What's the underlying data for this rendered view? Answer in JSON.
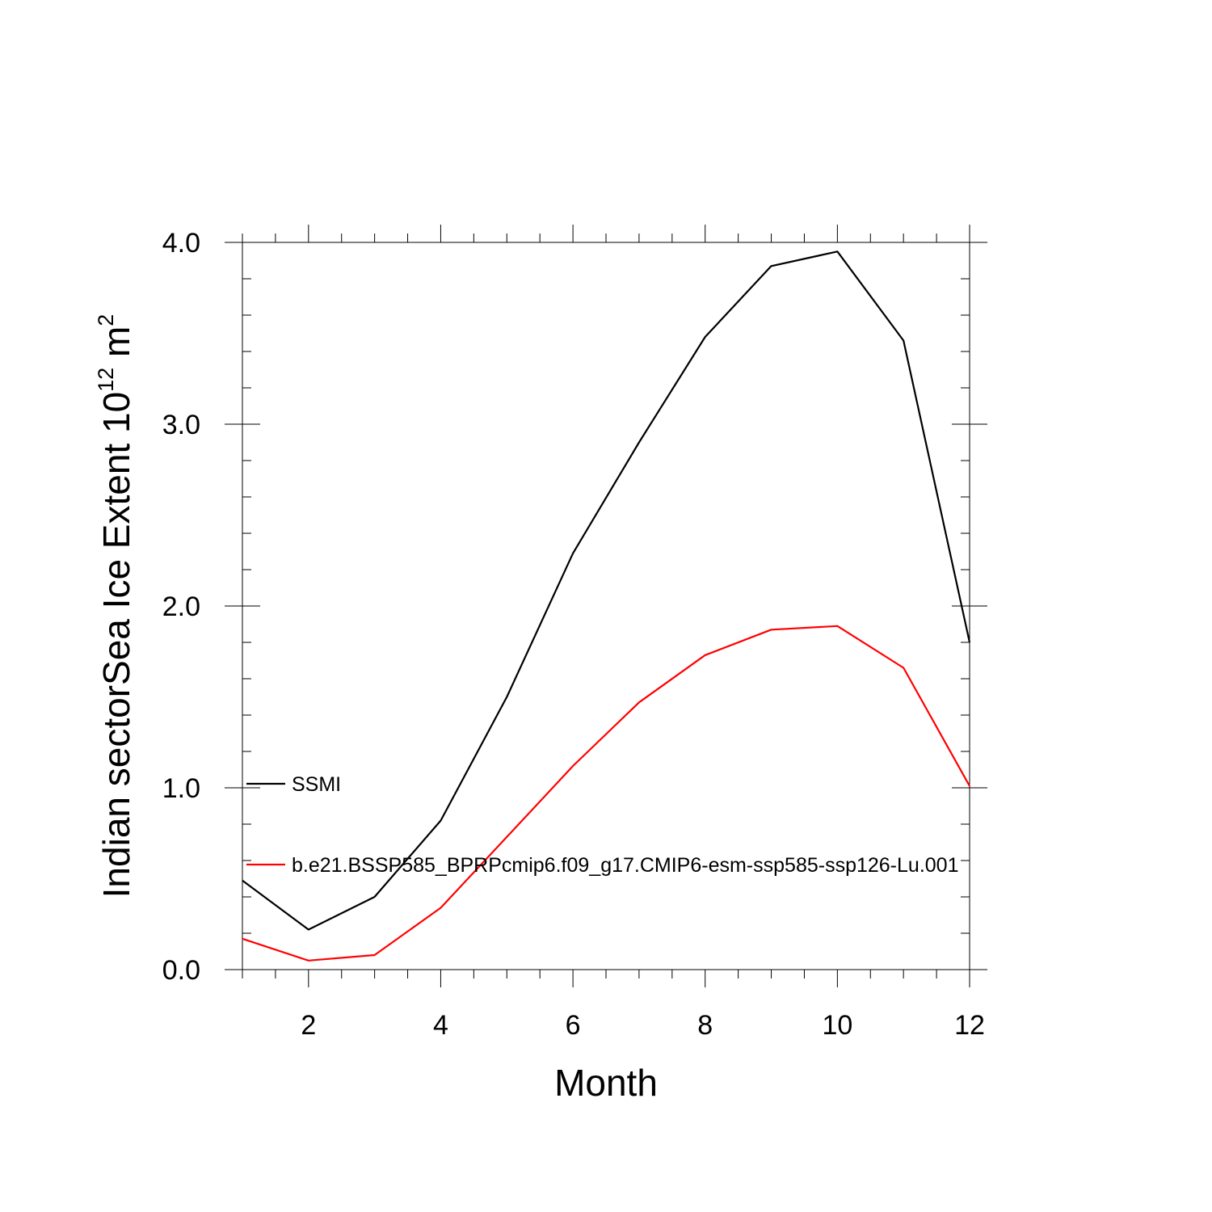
{
  "chart_data": {
    "type": "line",
    "xlabel": "Month",
    "ylabel": {
      "main": "Indian sectorSea Ice Extent 10",
      "exponent": "12",
      "unit": " m",
      "unit_exponent": "2"
    },
    "xlim": [
      1,
      12
    ],
    "ylim": [
      0,
      4
    ],
    "x_ticks": [
      2,
      4,
      6,
      8,
      10,
      12
    ],
    "x_tick_labels": [
      "2",
      "4",
      "6",
      "8",
      "10",
      "12"
    ],
    "y_ticks": [
      0,
      1,
      2,
      3,
      4
    ],
    "y_tick_labels": [
      "0.0",
      "1.0",
      "2.0",
      "3.0",
      "4.0"
    ],
    "x_minor_step": 0.5,
    "y_minor_step": 0.2,
    "grid": false,
    "legend_position": "left, inside plot",
    "x": [
      1,
      2,
      3,
      4,
      5,
      6,
      7,
      8,
      9,
      10,
      11,
      12
    ],
    "series": [
      {
        "name": "SSMI",
        "color": "#000000",
        "values": [
          0.49,
          0.22,
          0.4,
          0.82,
          1.5,
          2.29,
          2.9,
          3.48,
          3.87,
          3.95,
          3.46,
          1.8
        ]
      },
      {
        "name": "b.e21.BSSP585_BPRPcmip6.f09_g17.CMIP6-esm-ssp585-ssp126-Lu.001",
        "color": "#ff0000",
        "values": [
          0.17,
          0.05,
          0.08,
          0.34,
          0.73,
          1.12,
          1.47,
          1.73,
          1.87,
          1.89,
          1.66,
          1.01
        ]
      }
    ]
  }
}
